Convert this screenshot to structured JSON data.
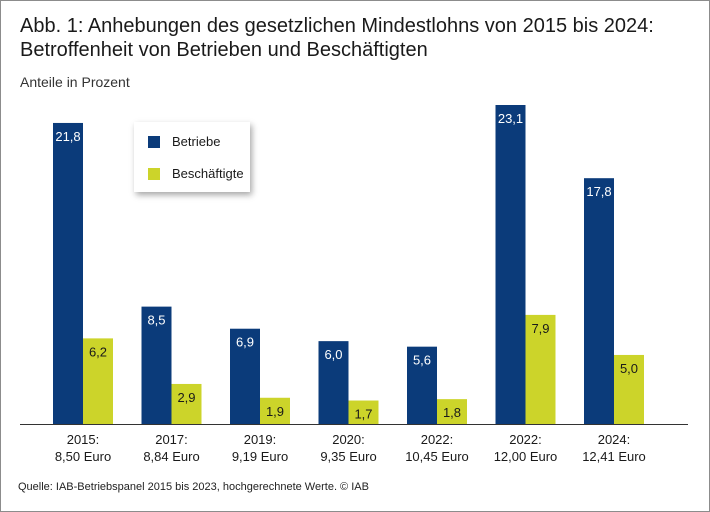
{
  "header": {
    "title_line1": "Abb. 1: Anhebungen des gesetzlichen Mindestlohns von 2015 bis 2024:",
    "title_line2": "Betroffenheit von Betrieben und Beschäftigten",
    "unit_label": "Anteile in Prozent"
  },
  "footer": {
    "source": "Quelle: IAB-Betriebspanel 2015 bis 2023, hochgerechnete Werte.  © IAB"
  },
  "colors": {
    "betriebe": "#0b3b7a",
    "beschaeftigte": "#ccd42a",
    "axis": "#333333"
  },
  "chart_data": {
    "type": "bar",
    "title": "Abb. 1: Anhebungen des gesetzlichen Mindestlohns von 2015 bis 2024: Betroffenheit von Betrieben und Beschäftigten",
    "ylabel": "Anteile in Prozent",
    "ylim": [
      0,
      23.1
    ],
    "legend_position": "top-left",
    "categories": [
      [
        "2015:",
        "8,50 Euro"
      ],
      [
        "2017:",
        "8,84 Euro"
      ],
      [
        "2019:",
        "9,19 Euro"
      ],
      [
        "2020:",
        "9,35 Euro"
      ],
      [
        "2022:",
        "10,45 Euro"
      ],
      [
        "2022:",
        "12,00 Euro"
      ],
      [
        "2024:",
        "12,41 Euro"
      ]
    ],
    "series": [
      {
        "name": "Betriebe",
        "values": [
          21.8,
          8.5,
          6.9,
          6.0,
          5.6,
          23.1,
          17.8
        ],
        "labels": [
          "21,8",
          "8,5",
          "6,9",
          "6,0",
          "5,6",
          "23,1",
          "17,8"
        ]
      },
      {
        "name": "Beschäftigte",
        "values": [
          6.2,
          2.9,
          1.9,
          1.7,
          1.8,
          7.9,
          5.0
        ],
        "labels": [
          "6,2",
          "2,9",
          "1,9",
          "1,7",
          "1,8",
          "7,9",
          "5,0"
        ]
      }
    ]
  }
}
